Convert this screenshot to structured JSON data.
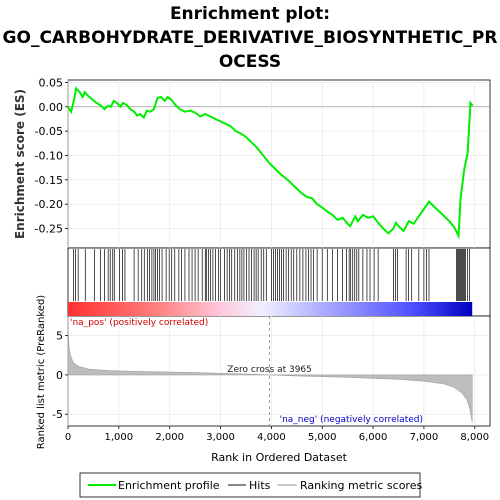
{
  "title_lines": [
    "Enrichment plot:",
    "GO_CARBOHYDRATE_DERIVATIVE_BIOSYNTHETIC_PR",
    "OCESS"
  ],
  "chart_data": {
    "type": "line",
    "es_panel": {
      "ylabel": "Enrichment score (ES)",
      "ylim": [
        -0.29,
        0.055
      ],
      "yticks": [
        0.05,
        0.0,
        -0.05,
        -0.1,
        -0.15,
        -0.2,
        -0.25
      ],
      "ytick_labels": [
        "0.05",
        "0.00",
        "-0.05",
        "-0.10",
        "-0.15",
        "-0.20",
        "-0.25"
      ],
      "series_color": "#00ee00",
      "points": [
        [
          0,
          0.0
        ],
        [
          60,
          -0.01
        ],
        [
          120,
          0.015
        ],
        [
          160,
          0.038
        ],
        [
          230,
          0.03
        ],
        [
          290,
          0.02
        ],
        [
          330,
          0.03
        ],
        [
          400,
          0.022
        ],
        [
          480,
          0.015
        ],
        [
          560,
          0.008
        ],
        [
          640,
          0.003
        ],
        [
          720,
          -0.005
        ],
        [
          780,
          0.002
        ],
        [
          840,
          0.0
        ],
        [
          900,
          0.012
        ],
        [
          960,
          0.008
        ],
        [
          1030,
          0.0
        ],
        [
          1080,
          0.008
        ],
        [
          1150,
          0.004
        ],
        [
          1230,
          -0.005
        ],
        [
          1300,
          -0.01
        ],
        [
          1360,
          -0.018
        ],
        [
          1420,
          -0.015
        ],
        [
          1490,
          -0.022
        ],
        [
          1550,
          -0.008
        ],
        [
          1620,
          -0.01
        ],
        [
          1690,
          -0.005
        ],
        [
          1760,
          0.018
        ],
        [
          1830,
          0.02
        ],
        [
          1900,
          0.012
        ],
        [
          1960,
          0.02
        ],
        [
          2030,
          0.015
        ],
        [
          2100,
          0.005
        ],
        [
          2200,
          -0.005
        ],
        [
          2300,
          -0.01
        ],
        [
          2400,
          -0.008
        ],
        [
          2500,
          -0.012
        ],
        [
          2600,
          -0.02
        ],
        [
          2700,
          -0.015
        ],
        [
          2800,
          -0.02
        ],
        [
          2900,
          -0.025
        ],
        [
          3000,
          -0.03
        ],
        [
          3100,
          -0.035
        ],
        [
          3200,
          -0.04
        ],
        [
          3300,
          -0.05
        ],
        [
          3400,
          -0.055
        ],
        [
          3500,
          -0.062
        ],
        [
          3600,
          -0.072
        ],
        [
          3700,
          -0.082
        ],
        [
          3800,
          -0.095
        ],
        [
          3900,
          -0.108
        ],
        [
          4000,
          -0.12
        ],
        [
          4100,
          -0.13
        ],
        [
          4200,
          -0.14
        ],
        [
          4300,
          -0.148
        ],
        [
          4400,
          -0.158
        ],
        [
          4500,
          -0.168
        ],
        [
          4600,
          -0.178
        ],
        [
          4700,
          -0.185
        ],
        [
          4800,
          -0.188
        ],
        [
          4900,
          -0.2
        ],
        [
          5000,
          -0.207
        ],
        [
          5100,
          -0.215
        ],
        [
          5200,
          -0.222
        ],
        [
          5300,
          -0.232
        ],
        [
          5400,
          -0.228
        ],
        [
          5500,
          -0.24
        ],
        [
          5550,
          -0.245
        ],
        [
          5600,
          -0.235
        ],
        [
          5650,
          -0.225
        ],
        [
          5700,
          -0.235
        ],
        [
          5800,
          -0.222
        ],
        [
          5900,
          -0.228
        ],
        [
          6000,
          -0.225
        ],
        [
          6100,
          -0.238
        ],
        [
          6200,
          -0.25
        ],
        [
          6300,
          -0.26
        ],
        [
          6400,
          -0.25
        ],
        [
          6450,
          -0.238
        ],
        [
          6500,
          -0.245
        ],
        [
          6600,
          -0.255
        ],
        [
          6700,
          -0.235
        ],
        [
          6800,
          -0.24
        ],
        [
          6900,
          -0.225
        ],
        [
          7000,
          -0.21
        ],
        [
          7100,
          -0.195
        ],
        [
          7200,
          -0.205
        ],
        [
          7300,
          -0.215
        ],
        [
          7400,
          -0.225
        ],
        [
          7500,
          -0.235
        ],
        [
          7600,
          -0.248
        ],
        [
          7680,
          -0.265
        ],
        [
          7700,
          -0.23
        ],
        [
          7720,
          -0.19
        ],
        [
          7750,
          -0.165
        ],
        [
          7790,
          -0.13
        ],
        [
          7830,
          -0.11
        ],
        [
          7860,
          -0.095
        ],
        [
          7880,
          -0.06
        ],
        [
          7900,
          -0.02
        ],
        [
          7915,
          0.008
        ],
        [
          7960,
          0.002
        ]
      ]
    },
    "hits_panel": {
      "hit_positions": [
        110,
        150,
        200,
        340,
        520,
        640,
        720,
        790,
        830,
        880,
        910,
        1010,
        1070,
        1120,
        1300,
        1380,
        1450,
        1500,
        1560,
        1600,
        1650,
        1690,
        1720,
        1760,
        1800,
        1850,
        1930,
        1990,
        2040,
        2100,
        2180,
        2230,
        2300,
        2380,
        2440,
        2500,
        2560,
        2640,
        2700,
        2720,
        2760,
        2800,
        2850,
        2900,
        2960,
        3000,
        3080,
        3130,
        3180,
        3220,
        3280,
        3330,
        3380,
        3420,
        3460,
        3510,
        3560,
        3610,
        3660,
        3700,
        3740,
        3800,
        3850,
        3900,
        4000,
        4040,
        4080,
        4120,
        4160,
        4200,
        4240,
        4290,
        4340,
        4390,
        4440,
        4500,
        4560,
        4620,
        4680,
        4730,
        4780,
        4830,
        4900,
        5000,
        5100,
        5200,
        5300,
        5400,
        5480,
        5530,
        5560,
        5600,
        5640,
        5680,
        5720,
        5800,
        5880,
        5940,
        6020,
        6100,
        6400,
        6440,
        6480,
        6650,
        6700,
        6760,
        6900,
        7000,
        7050,
        7100,
        7640,
        7660,
        7680,
        7700,
        7720,
        7740,
        7760,
        7780,
        7800,
        7820,
        7860,
        7900
      ]
    },
    "rank_panel": {
      "ylabel": "Ranked list metric (PreRanked)",
      "ylim": [
        -6.5,
        7.5
      ],
      "yticks": [
        5,
        0,
        -5
      ],
      "ytick_labels": [
        "5",
        "0",
        "-5"
      ],
      "profile": [
        [
          0,
          6.0
        ],
        [
          20,
          3.5
        ],
        [
          50,
          2.5
        ],
        [
          100,
          1.6
        ],
        [
          200,
          1.1
        ],
        [
          400,
          0.75
        ],
        [
          800,
          0.55
        ],
        [
          1500,
          0.42
        ],
        [
          2500,
          0.3
        ],
        [
          3500,
          0.12
        ],
        [
          3965,
          0.0
        ],
        [
          4500,
          -0.12
        ],
        [
          5500,
          -0.3
        ],
        [
          6500,
          -0.55
        ],
        [
          7000,
          -0.8
        ],
        [
          7400,
          -1.15
        ],
        [
          7600,
          -1.6
        ],
        [
          7750,
          -2.3
        ],
        [
          7850,
          -3.2
        ],
        [
          7910,
          -4.5
        ],
        [
          7950,
          -6.0
        ]
      ],
      "zero_cross_label": "Zero cross at 3965",
      "zero_cross_x": 3965,
      "pos_label": "'na_pos' (positively correlated)",
      "neg_label": "'na_neg' (negatively correlated)"
    },
    "xaxis": {
      "label": "Rank in Ordered Dataset",
      "xlim": [
        0,
        8300
      ],
      "ticks": [
        0,
        1000,
        2000,
        3000,
        4000,
        5000,
        6000,
        7000,
        8000
      ],
      "tick_labels": [
        "0",
        "1,000",
        "2,000",
        "3,000",
        "4,000",
        "5,000",
        "6,000",
        "7,000",
        "8,000"
      ],
      "n_genes": 7950
    },
    "legend": {
      "placement": "bottom",
      "items": [
        {
          "label": "Enrichment profile",
          "color": "#00ee00",
          "kind": "line"
        },
        {
          "label": "Hits",
          "color": "#888888",
          "kind": "line"
        },
        {
          "label": "Ranking metric scores",
          "color": "#cccccc",
          "kind": "line"
        }
      ]
    }
  }
}
